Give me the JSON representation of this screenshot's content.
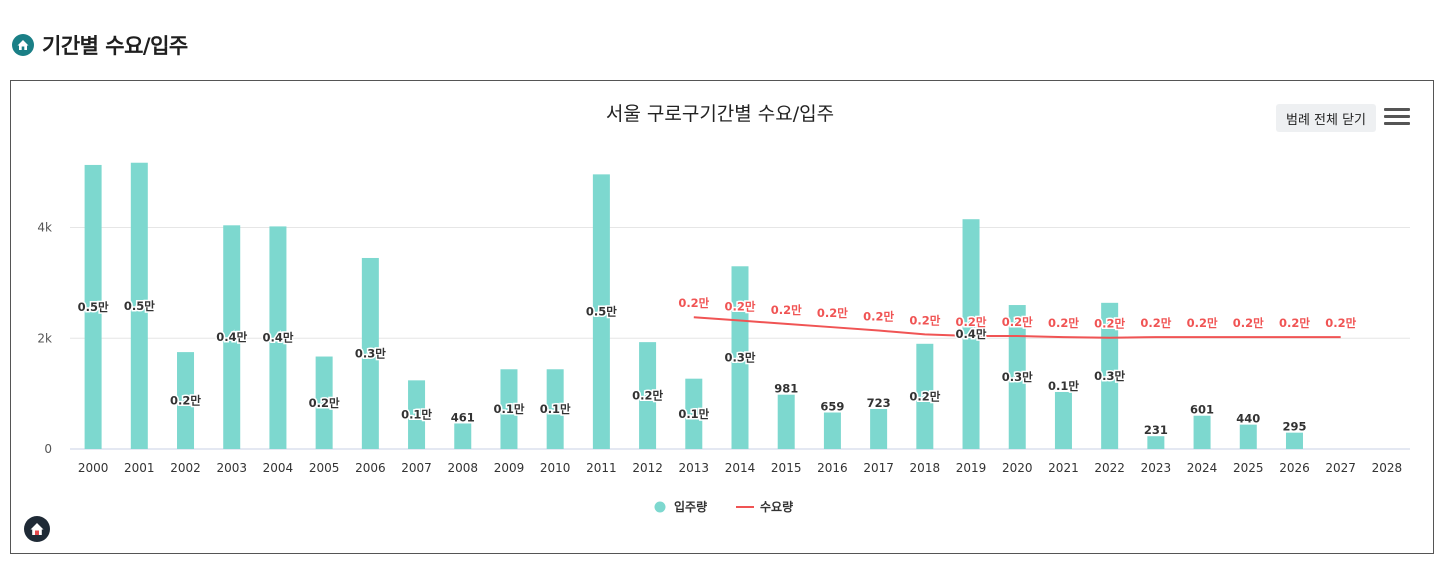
{
  "page": {
    "section_title": "기간별 수요/입주"
  },
  "toolbar": {
    "legend_close_label": "범례 전체 닫기"
  },
  "colors": {
    "supply_bar": "#7dd8cf",
    "demand_line": "#f05454",
    "accent": "#1a7f86"
  },
  "chart_data": {
    "type": "bar",
    "title": "서울 구로구기간별 수요/입주",
    "categories": [
      "2000",
      "2001",
      "2002",
      "2003",
      "2004",
      "2005",
      "2006",
      "2007",
      "2008",
      "2009",
      "2010",
      "2011",
      "2012",
      "2013",
      "2014",
      "2015",
      "2016",
      "2017",
      "2018",
      "2019",
      "2020",
      "2021",
      "2022",
      "2023",
      "2024",
      "2025",
      "2026",
      "2027",
      "2028"
    ],
    "ylim": [
      0,
      5400
    ],
    "yticks": [
      0,
      2000,
      4000
    ],
    "ytick_labels": [
      "0",
      "2k",
      "4k"
    ],
    "grid": true,
    "legend_position": "bottom",
    "series": [
      {
        "name": "입주량",
        "type": "bar",
        "values": [
          5130,
          5170,
          1750,
          4040,
          4020,
          1670,
          3450,
          1240,
          461,
          1440,
          1440,
          4960,
          1930,
          1270,
          3300,
          981,
          659,
          723,
          1900,
          4150,
          2600,
          1030,
          2640,
          231,
          601,
          440,
          295,
          null,
          null
        ],
        "labels": [
          "0.5만",
          "0.5만",
          "0.2만",
          "0.4만",
          "0.4만",
          "0.2만",
          "0.3만",
          "0.1만",
          "461",
          "0.1만",
          "0.1만",
          "0.5만",
          "0.2만",
          "0.1만",
          "0.3만",
          "981",
          "659",
          "723",
          "0.2만",
          "0.4만",
          "0.3만",
          "0.1만",
          "0.3만",
          "231",
          "601",
          "440",
          "295",
          "",
          ""
        ]
      },
      {
        "name": "수요량",
        "type": "line",
        "values": [
          null,
          null,
          null,
          null,
          null,
          null,
          null,
          null,
          null,
          null,
          null,
          null,
          null,
          2380,
          2320,
          2260,
          2200,
          2140,
          2070,
          2040,
          2040,
          2020,
          2010,
          2020,
          2020,
          2020,
          2020,
          2020,
          null
        ],
        "labels": [
          "",
          "",
          "",
          "",
          "",
          "",
          "",
          "",
          "",
          "",
          "",
          "",
          "",
          "0.2만",
          "0.2만",
          "0.2만",
          "0.2만",
          "0.2만",
          "0.2만",
          "0.2만",
          "0.2만",
          "0.2만",
          "0.2만",
          "0.2만",
          "0.2만",
          "0.2만",
          "0.2만",
          "0.2만",
          ""
        ]
      }
    ]
  }
}
